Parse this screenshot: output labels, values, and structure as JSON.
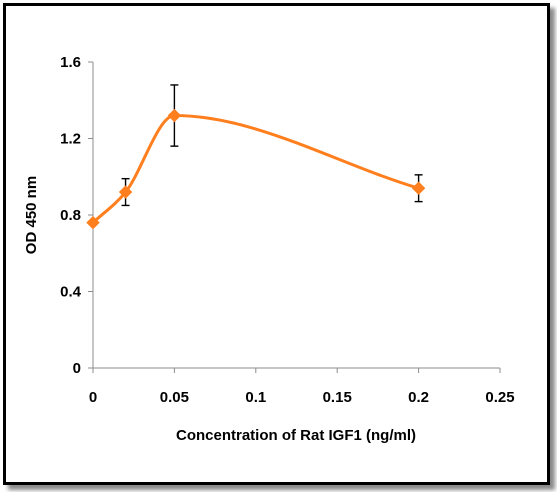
{
  "chart_data": {
    "type": "scatter",
    "title": "",
    "xlabel": "Concentration of Rat IGF1 (ng/ml)",
    "ylabel": "OD 450 nm",
    "xlim": [
      0,
      0.25
    ],
    "ylim": [
      0,
      1.6
    ],
    "x_ticks": [
      "0",
      "0.05",
      "0.1",
      "0.15",
      "0.2",
      "0.25"
    ],
    "y_ticks": [
      "0",
      "0.4",
      "0.8",
      "1.2",
      "1.6"
    ],
    "grid": false,
    "legend": "none",
    "smoothed_line": true,
    "series": [
      {
        "color": "#ff7f1e",
        "marker": "diamond",
        "points": [
          {
            "x": 0,
            "y": 0.76,
            "err": 0.0
          },
          {
            "x": 0.02,
            "y": 0.92,
            "err": 0.07
          },
          {
            "x": 0.05,
            "y": 1.32,
            "err": 0.16
          },
          {
            "x": 0.2,
            "y": 0.94,
            "err": 0.07
          }
        ]
      }
    ]
  }
}
